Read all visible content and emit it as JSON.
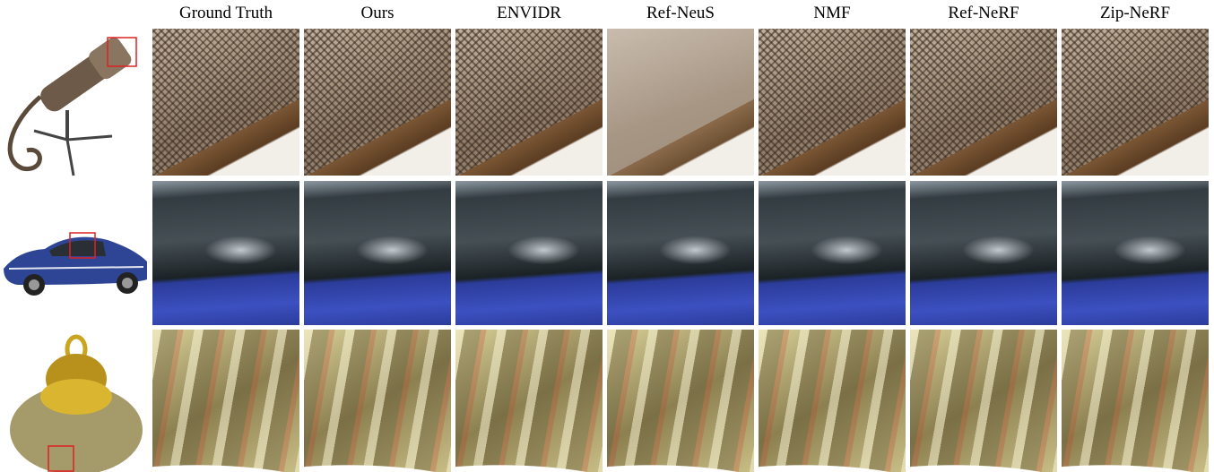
{
  "columns": [
    "Ground Truth",
    "Ours",
    "ENVIDR",
    "Ref-NeuS",
    "NMF",
    "Ref-NeRF",
    "Zip-NeRF"
  ]
}
